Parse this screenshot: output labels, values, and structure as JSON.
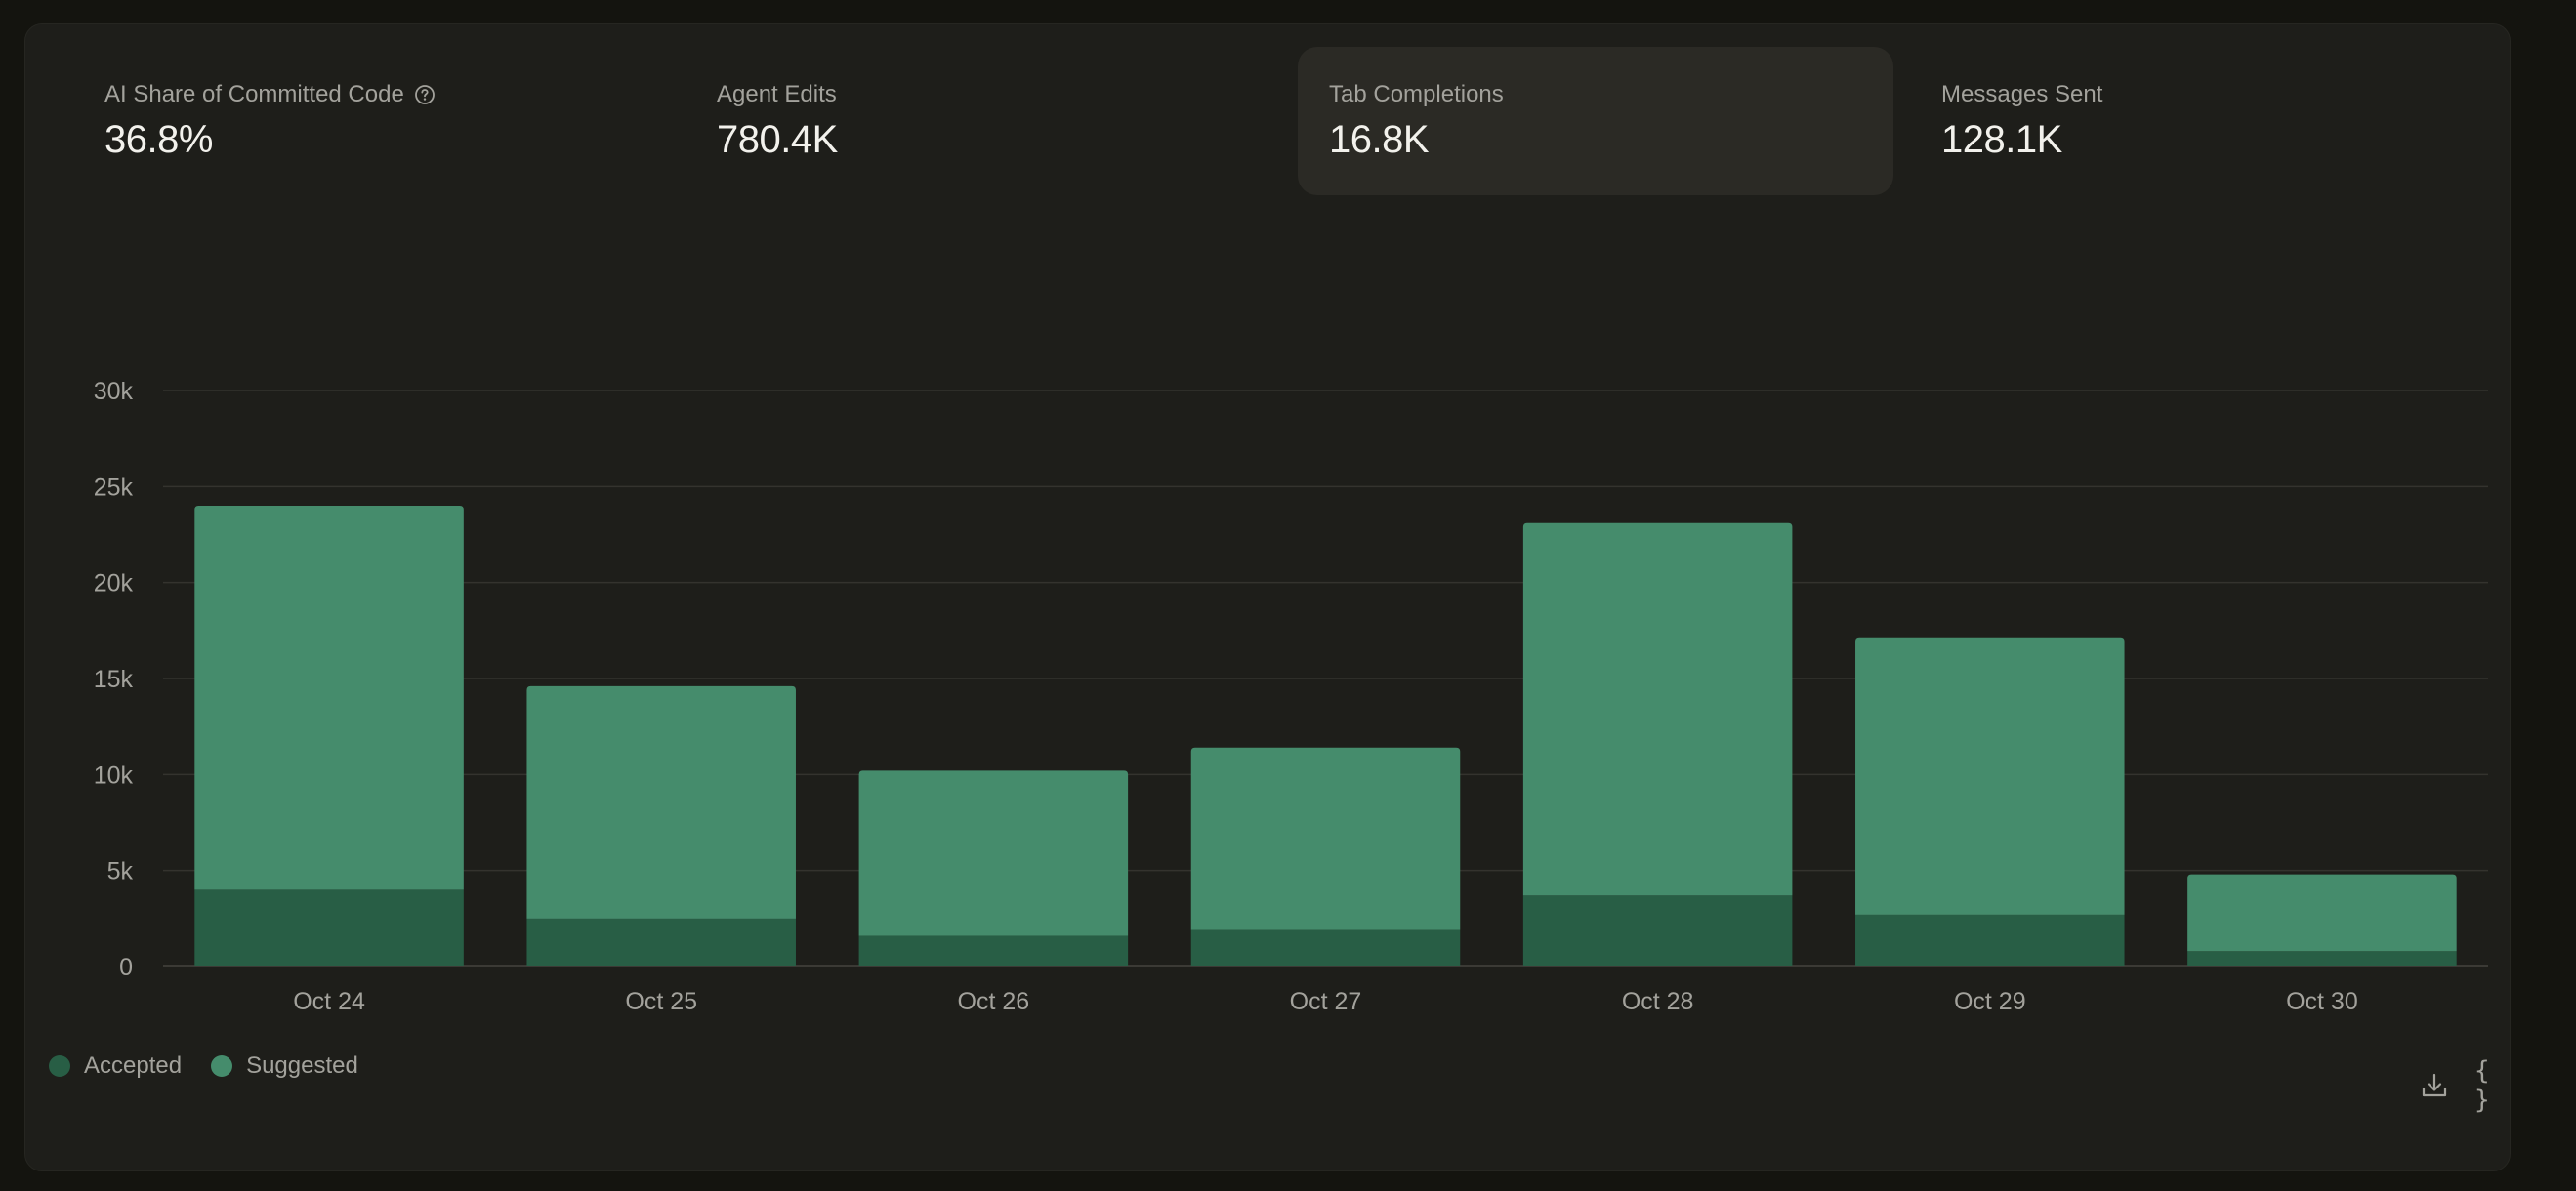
{
  "stats": [
    {
      "label": "AI Share of Committed Code",
      "value": "36.8%",
      "help_icon": "question-circle-icon",
      "selected": false
    },
    {
      "label": "Agent Edits",
      "value": "780.4K",
      "selected": false
    },
    {
      "label": "Tab Completions",
      "value": "16.8K",
      "selected": true
    },
    {
      "label": "Messages Sent",
      "value": "128.1K",
      "selected": false
    }
  ],
  "chart_data": {
    "type": "bar",
    "stacked": true,
    "categories": [
      "Oct 24",
      "Oct 25",
      "Oct 26",
      "Oct 27",
      "Oct 28",
      "Oct 29",
      "Oct 30"
    ],
    "series": [
      {
        "name": "Accepted",
        "color": "#285e45",
        "values": [
          4000,
          2500,
          1600,
          1900,
          3700,
          2700,
          800
        ]
      },
      {
        "name": "Suggested",
        "color": "#458c6c",
        "values": [
          20000,
          12100,
          8600,
          9500,
          19400,
          14400,
          4000
        ]
      }
    ],
    "ylim": [
      0,
      30000
    ],
    "yticks": [
      0,
      5000,
      10000,
      15000,
      20000,
      25000,
      30000
    ],
    "ytick_labels": [
      "0",
      "5k",
      "10k",
      "15k",
      "20k",
      "25k",
      "30k"
    ],
    "grid": true,
    "legend": "bottom-left",
    "xlabel": "",
    "ylabel": "",
    "title": ""
  },
  "legend": {
    "items": [
      {
        "label": "Accepted",
        "color": "#285e45"
      },
      {
        "label": "Suggested",
        "color": "#458c6c"
      }
    ]
  },
  "toolbar": {
    "download_icon": "download-icon",
    "json_label": "{ }"
  }
}
